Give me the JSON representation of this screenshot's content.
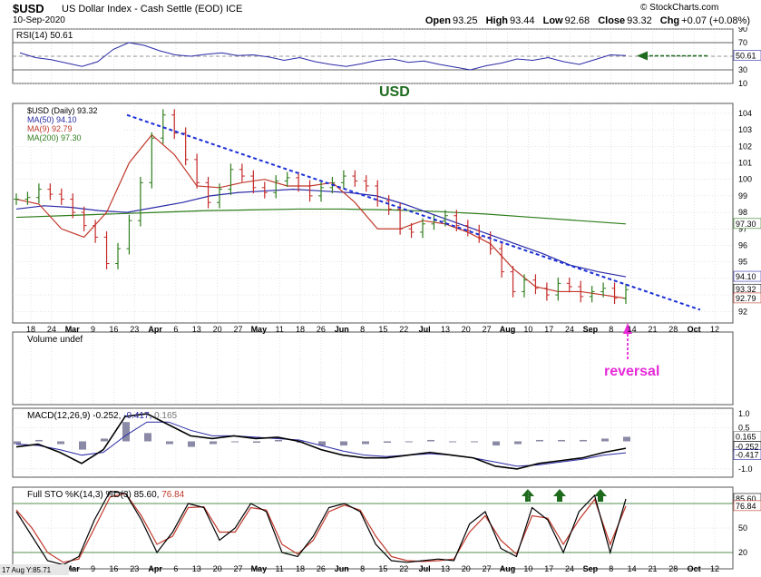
{
  "header": {
    "symbol": "$USD",
    "name": "US Dollar Index - Cash Settle (EOD)",
    "exchange": "ICE",
    "date": "10-Sep-2020",
    "brand": "© StockCharts.com",
    "open_label": "Open",
    "open": "93.25",
    "high_label": "High",
    "high": "93.44",
    "low_label": "Low",
    "low": "92.68",
    "close_label": "Close",
    "close": "93.32",
    "chg_label": "Chg",
    "chg": "+0.07 (+0.08%)"
  },
  "colors": {
    "grid": "#c8c8c8",
    "price_up": "#2e7d1b",
    "price_down": "#c62828",
    "ma50": "#2a2aa8",
    "ma9": "#c0392b",
    "ma200": "#2e7d1b",
    "trendline": "#1a2fd6",
    "annotation_pink": "#e62ad8",
    "arrow_green": "#1e6b1e"
  },
  "chart_data": [
    {
      "type": "line",
      "panel": "RSI",
      "legend": "RSI(14) 50.61",
      "ylim": [
        10,
        90
      ],
      "yticks": [
        "90",
        "70",
        "50",
        "30",
        "10"
      ],
      "overbought": 70,
      "oversold": 30,
      "series": [
        {
          "name": "RSI(14)",
          "values": [
            55,
            48,
            45,
            40,
            35,
            42,
            60,
            70,
            66,
            58,
            52,
            50,
            53,
            55,
            51,
            52,
            49,
            44,
            48,
            42,
            38,
            35,
            39,
            44,
            46,
            41,
            43,
            38,
            34,
            30,
            36,
            40,
            46,
            44,
            48,
            42,
            38,
            45,
            52,
            51
          ]
        }
      ],
      "last_value_label": "50.61",
      "annotation": "USD"
    },
    {
      "type": "line",
      "panel": "Price",
      "title": "$USD (Daily) 93.32",
      "ylim": [
        91.3,
        104.6
      ],
      "yticks": [
        "104",
        "103",
        "102",
        "101",
        "100",
        "99",
        "98",
        "97",
        "96",
        "95",
        "94",
        "93",
        "92"
      ],
      "x_tick_labels": [
        "18",
        "24",
        "Mar",
        "9",
        "16",
        "23",
        "Apr",
        "6",
        "13",
        "20",
        "27",
        "May",
        "11",
        "18",
        "26",
        "Jun",
        "8",
        "15",
        "22",
        "Jul",
        "13",
        "20",
        "27",
        "Aug",
        "10",
        "17",
        "24",
        "Sep",
        "8",
        "14",
        "21",
        "28",
        "Oct",
        "12"
      ],
      "series": [
        {
          "name": "$USD (Daily) 93.32",
          "values": [
            98.8,
            98.9,
            99.4,
            99.1,
            98.8,
            98.0,
            97.2,
            96.5,
            94.9,
            95.8,
            97.5,
            99.8,
            102.5,
            103.9,
            102.8,
            101.2,
            99.8,
            98.6,
            99.4,
            100.6,
            100.2,
            99.5,
            99.2,
            99.9,
            100.1,
            99.6,
            99.0,
            99.5,
            99.8,
            100.2,
            99.9,
            99.6,
            98.7,
            98.2,
            97.0,
            96.8,
            97.3,
            97.5,
            97.8,
            97.2,
            96.9,
            96.5,
            95.8,
            94.4,
            93.2,
            93.9,
            93.4,
            93.0,
            93.7,
            93.5,
            92.9,
            93.2,
            93.4,
            92.8,
            93.32
          ]
        },
        {
          "name": "MA(50) 94.10",
          "values": [
            98.2,
            98.4,
            98.3,
            98.1,
            98.0,
            98.3,
            98.6,
            99.0,
            99.2,
            99.3,
            99.4,
            99.3,
            99.2,
            99.0,
            98.5,
            97.9,
            97.3,
            96.7,
            96.1,
            95.5,
            94.8,
            94.4,
            94.1
          ]
        },
        {
          "name": "MA(9) 92.79",
          "values": [
            98.8,
            98.5,
            97.0,
            96.5,
            98.0,
            101.0,
            102.7,
            101.5,
            99.6,
            99.5,
            99.8,
            100.0,
            99.6,
            99.6,
            99.8,
            98.6,
            97.0,
            97.0,
            97.5,
            97.3,
            96.8,
            96.1,
            94.6,
            93.5,
            93.2,
            93.2,
            93.0,
            92.79
          ]
        },
        {
          "name": "MA(200) 97.30",
          "values": [
            97.7,
            97.8,
            97.9,
            98.0,
            98.1,
            98.15,
            98.2,
            98.2,
            98.15,
            98.05,
            97.9,
            97.7,
            97.5,
            97.3
          ]
        }
      ],
      "trendline": {
        "from": [
          23,
          103.9
        ],
        "to": [
          14,
          93.0
        ]
      },
      "last_value_labels": [
        "94.10",
        "93.32",
        "92.79",
        "97.30"
      ],
      "annotation": "reversal"
    },
    {
      "type": "bar",
      "panel": "Volume",
      "legend": "Volume undef"
    },
    {
      "type": "line",
      "panel": "MACD",
      "legend_label": "MACD(12,26,9)",
      "legend_values": [
        "-0.252",
        "-0.417",
        "0.165"
      ],
      "ylim": [
        -1.3,
        1.2
      ],
      "yticks": [
        "1.0",
        "0.5",
        "-1.0"
      ],
      "series": [
        {
          "name": "MACD",
          "values": [
            -0.2,
            -0.1,
            -0.4,
            -0.8,
            -0.3,
            0.9,
            1.0,
            0.6,
            0.2,
            0.1,
            0.2,
            0.1,
            0.15,
            0.0,
            -0.3,
            -0.5,
            -0.6,
            -0.6,
            -0.5,
            -0.4,
            -0.5,
            -0.6,
            -0.9,
            -1.0,
            -0.8,
            -0.7,
            -0.6,
            -0.4,
            -0.252
          ]
        },
        {
          "name": "Signal",
          "values": [
            -0.1,
            -0.15,
            -0.3,
            -0.5,
            -0.4,
            0.2,
            0.7,
            0.7,
            0.4,
            0.2,
            0.2,
            0.15,
            0.1,
            0.05,
            -0.15,
            -0.35,
            -0.5,
            -0.55,
            -0.5,
            -0.45,
            -0.5,
            -0.6,
            -0.75,
            -0.9,
            -0.85,
            -0.75,
            -0.65,
            -0.5,
            -0.417
          ]
        },
        {
          "name": "Histogram",
          "values": [
            -0.1,
            0.05,
            -0.1,
            -0.3,
            0.1,
            0.7,
            0.3,
            -0.1,
            -0.2,
            -0.1,
            0.0,
            -0.05,
            0.05,
            -0.05,
            -0.15,
            -0.15,
            -0.1,
            -0.05,
            0.0,
            0.05,
            0.0,
            0.0,
            -0.15,
            -0.1,
            0.05,
            0.05,
            0.05,
            0.1,
            0.165
          ]
        }
      ],
      "last_value_labels": [
        "0.165",
        "-0.252",
        "-0.417"
      ]
    },
    {
      "type": "line",
      "panel": "Full STO",
      "legend_label": "Full STO %K(14,3) %D(3)",
      "legend_values": [
        "85.60",
        "76.84"
      ],
      "ylim": [
        0,
        100
      ],
      "yticks": [
        "80",
        "50",
        "20"
      ],
      "series": [
        {
          "name": "%K",
          "values": [
            70,
            40,
            10,
            5,
            15,
            60,
            95,
            92,
            60,
            20,
            45,
            80,
            75,
            35,
            50,
            80,
            70,
            20,
            15,
            40,
            75,
            80,
            70,
            30,
            10,
            8,
            10,
            12,
            10,
            55,
            70,
            25,
            15,
            75,
            60,
            20,
            70,
            90,
            20,
            85.6
          ]
        },
        {
          "name": "%D",
          "values": [
            72,
            50,
            20,
            8,
            12,
            50,
            88,
            92,
            65,
            30,
            40,
            75,
            76,
            45,
            45,
            75,
            72,
            30,
            18,
            35,
            70,
            78,
            72,
            40,
            15,
            10,
            9,
            10,
            12,
            45,
            65,
            35,
            18,
            65,
            62,
            30,
            60,
            85,
            30,
            76.84
          ]
        }
      ],
      "last_value_labels": [
        "85.60",
        "76.84"
      ],
      "footer": "17 Aug Y:85.71"
    }
  ]
}
